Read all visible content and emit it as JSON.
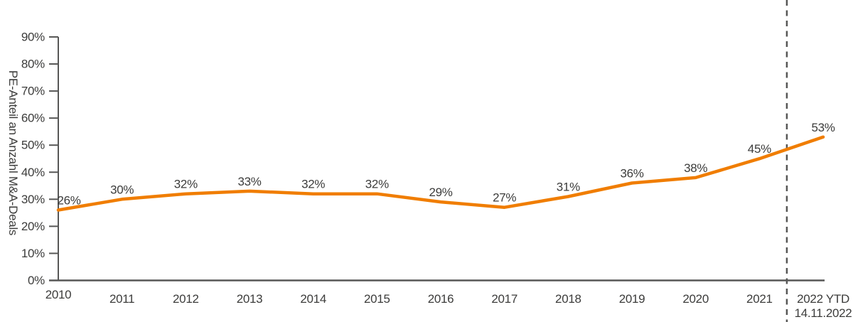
{
  "chart_data": {
    "type": "line",
    "title": "",
    "xlabel": "",
    "ylabel": "PE-Anteil an Anzahl M&A-Deals",
    "categories": [
      "2010",
      "2011",
      "2012",
      "2013",
      "2014",
      "2015",
      "2016",
      "2017",
      "2018",
      "2019",
      "2020",
      "2021",
      {
        "label": "2022 YTD",
        "sublabel": "14.11.2022"
      }
    ],
    "series": [
      {
        "name": "PE-Anteil an Anzahl M&A-Deals",
        "values": [
          26,
          30,
          32,
          33,
          32,
          32,
          29,
          27,
          31,
          36,
          38,
          45,
          53
        ]
      }
    ],
    "unit": "%",
    "data_labels": [
      "26%",
      "30%",
      "32%",
      "33%",
      "32%",
      "32%",
      "29%",
      "27%",
      "31%",
      "36%",
      "38%",
      "45%",
      "53%"
    ],
    "y_tick_labels": [
      "0%",
      "10%",
      "20%",
      "30%",
      "40%",
      "50%",
      "60%",
      "70%",
      "80%",
      "90%"
    ],
    "ylim": [
      0,
      90
    ],
    "y_tick_step": 10,
    "grid": false,
    "legend": false,
    "annotations": {
      "dashed_divider_between": [
        "2021",
        "2022 YTD"
      ]
    },
    "colors": {
      "line": "#F07D00",
      "axis": "#575756",
      "divider": "#575756",
      "text": "#3C3C3B"
    }
  }
}
